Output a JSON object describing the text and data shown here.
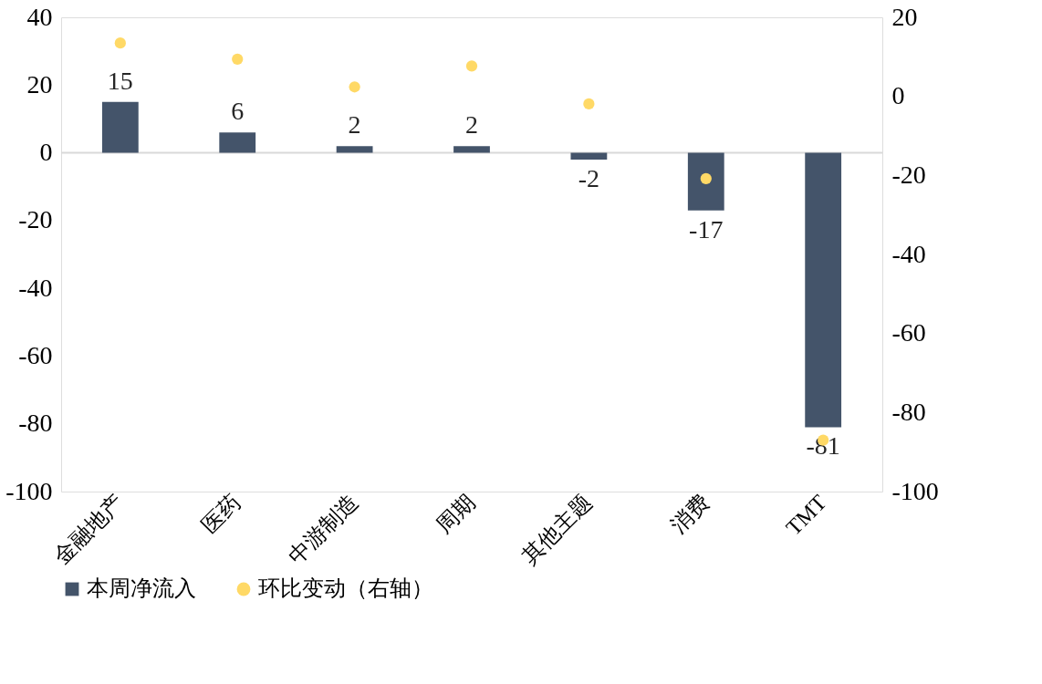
{
  "chart_data": {
    "type": "bar",
    "categories": [
      "金融地产",
      "医药",
      "中游制造",
      "周期",
      "其他主题",
      "消费",
      "TMT"
    ],
    "series": [
      {
        "name": "本周净流入",
        "color": "#44546a",
        "values": [
          15,
          6,
          2,
          2,
          -2,
          -17,
          -81
        ],
        "value_labels": [
          "15",
          "6",
          "2",
          "2",
          "-2",
          "-17",
          "-81"
        ]
      },
      {
        "name": "环比变动（右轴）",
        "type": "scatter",
        "axis": "y2",
        "color": "#ffd966",
        "values": [
          13.5,
          9.4,
          2.4,
          7.7,
          -1.9,
          -20.8,
          -87
        ]
      }
    ],
    "ylim": [
      -100,
      40
    ],
    "yticks": [
      -100,
      -80,
      -60,
      -40,
      -20,
      0,
      20,
      40
    ],
    "y2lim": [
      -100,
      20
    ],
    "y2ticks": [
      -100,
      -80,
      -60,
      -40,
      -20,
      0,
      20
    ],
    "grid": false,
    "legend": "bottom",
    "marker": "circle",
    "ref_lines": [
      {
        "axis": "y",
        "value": 0,
        "color": "#d9d9d9"
      }
    ]
  }
}
